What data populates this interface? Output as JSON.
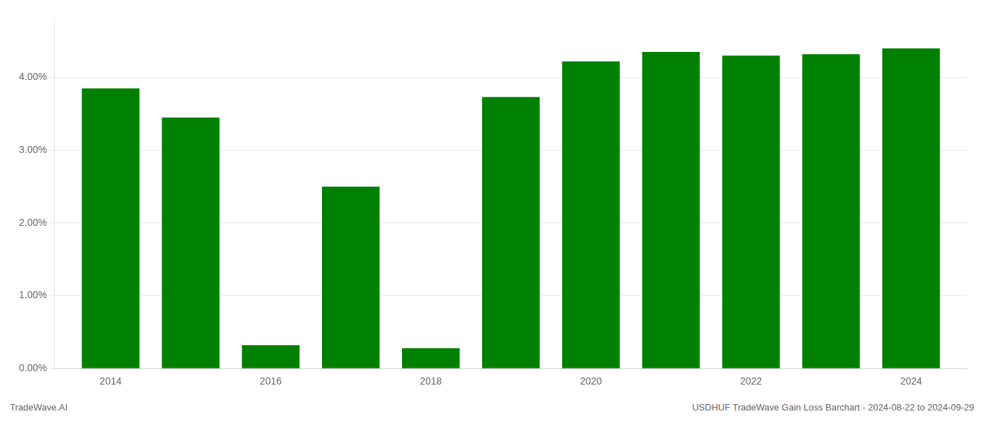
{
  "chart_data": {
    "type": "bar",
    "x": [
      2014,
      2015,
      2016,
      2017,
      2018,
      2019,
      2020,
      2021,
      2022,
      2023,
      2024
    ],
    "values": [
      0.0385,
      0.0345,
      0.0032,
      0.025,
      0.0028,
      0.0373,
      0.0422,
      0.0435,
      0.043,
      0.0432,
      0.044
    ],
    "color": "#008000",
    "xlim": [
      2013.3,
      2024.7
    ],
    "xticks": [
      2014,
      2016,
      2018,
      2020,
      2022,
      2024
    ],
    "ylim": [
      0,
      0.048
    ],
    "yticks": [
      {
        "value": 0.0,
        "label": "0.00%"
      },
      {
        "value": 0.01,
        "label": "1.00%"
      },
      {
        "value": 0.02,
        "label": "2.00%"
      },
      {
        "value": 0.03,
        "label": "3.00%"
      },
      {
        "value": 0.04,
        "label": "4.00%"
      }
    ],
    "grid": true,
    "annotations": [
      "TradeWave.AI",
      "USDHUF TradeWave Gain Loss Barchart - 2024-08-22 to 2024-09-29"
    ]
  }
}
